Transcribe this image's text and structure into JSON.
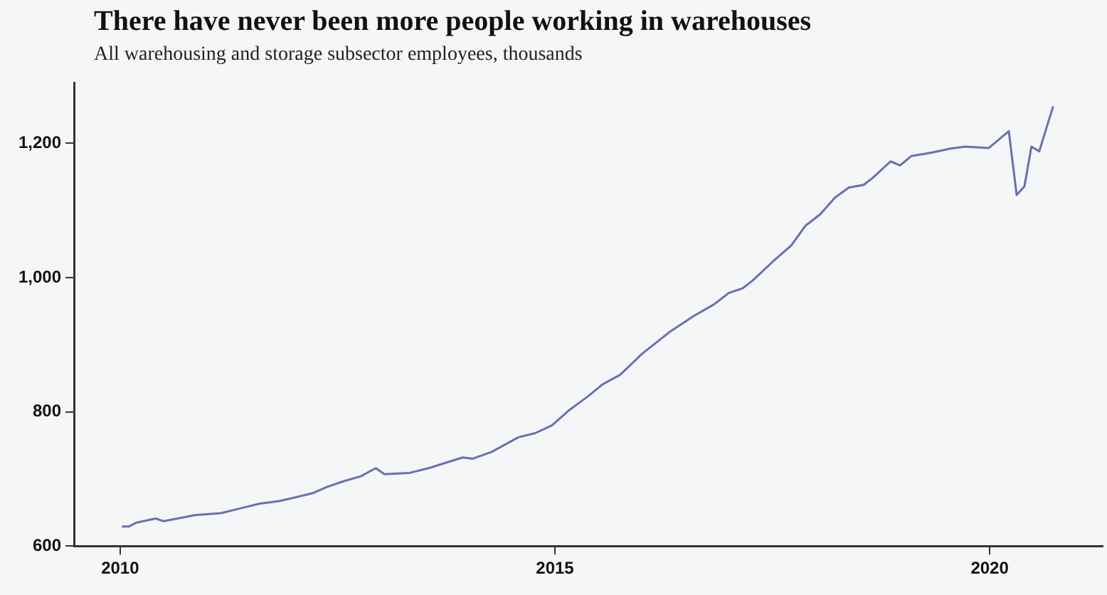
{
  "chart_data": {
    "type": "line",
    "title": "There have never been more people working in warehouses",
    "subtitle": "All warehousing and storage subsector employees, thousands",
    "x": [
      2010.02,
      2010.1,
      2010.19,
      2010.41,
      2010.5,
      2010.86,
      2011.16,
      2011.38,
      2011.6,
      2011.83,
      2012.0,
      2012.22,
      2012.38,
      2012.58,
      2012.77,
      2012.94,
      2013.04,
      2013.33,
      2013.55,
      2013.77,
      2013.94,
      2014.05,
      2014.27,
      2014.58,
      2014.77,
      2014.97,
      2015.16,
      2015.38,
      2015.55,
      2015.75,
      2016.0,
      2016.33,
      2016.6,
      2016.83,
      2017.0,
      2017.16,
      2017.27,
      2017.5,
      2017.72,
      2017.88,
      2018.05,
      2018.22,
      2018.38,
      2018.55,
      2018.66,
      2018.86,
      2018.97,
      2019.1,
      2019.33,
      2019.55,
      2019.72,
      2019.99,
      2020.22,
      2020.31,
      2020.4,
      2020.48,
      2020.57,
      2020.73
    ],
    "series": [
      {
        "color": "#6f6db3",
        "values": [
          629,
          629,
          635,
          641,
          637,
          646,
          649,
          656,
          663,
          667,
          672,
          679,
          688,
          697,
          704,
          716,
          707,
          709,
          716,
          725,
          732,
          730,
          740,
          762,
          768,
          780,
          802,
          823,
          841,
          855,
          886,
          920,
          943,
          960,
          977,
          984,
          995,
          1023,
          1048,
          1077,
          1094,
          1119,
          1134,
          1138,
          1149,
          1173,
          1167,
          1181,
          1186,
          1192,
          1195,
          1193,
          1218,
          1123,
          1136,
          1195,
          1188,
          1255
        ]
      }
    ],
    "xlim": [
      2009.47,
      2021.3
    ],
    "xticks": [
      2010,
      2015,
      2020
    ],
    "ylim": [
      600,
      1290
    ],
    "yticks": [
      {
        "value": 600,
        "label": "600"
      },
      {
        "value": 800,
        "label": "800"
      },
      {
        "value": 1000,
        "label": "1,000"
      },
      {
        "value": 1200,
        "label": "1,200"
      }
    ],
    "grid": false,
    "legend": false,
    "marker": "none",
    "line_style": "solid"
  }
}
